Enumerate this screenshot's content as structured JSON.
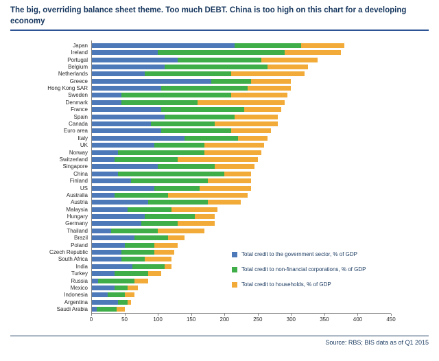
{
  "title": "The big, overriding balance sheet theme. Too much DEBT. China is too high on this chart for a developing economy",
  "source": "Source:  RBS; BIS data as of Q1 2015",
  "colors": {
    "government": "#4d79b8",
    "corporations": "#3fae49",
    "households": "#f2ab38",
    "title_navy": "#17375e",
    "rule_blue": "#2e5496"
  },
  "chart_data": {
    "type": "bar",
    "orientation": "horizontal",
    "stacked": true,
    "title": "",
    "xlabel": "",
    "ylabel": "",
    "xlim": [
      0,
      450
    ],
    "xticks": [
      0,
      50,
      100,
      150,
      200,
      250,
      300,
      350,
      400,
      450
    ],
    "grid": false,
    "legend_position": "inside-lower-right",
    "categories": [
      "Japan",
      "Ireland",
      "Portugal",
      "Belgium",
      "Netherlands",
      "Greece",
      "Hong Kong SAR",
      "Sweden",
      "Denmark",
      "France",
      "Spain",
      "Canada",
      "Euro area",
      "Italy",
      "UK",
      "Norway",
      "Switzerland",
      "Singapore",
      "China",
      "Finland",
      "US",
      "Australia",
      "Austria",
      "Malaysia",
      "Hungary",
      "Germany",
      "Thailand",
      "Brazil",
      "Poland",
      "Czech Republic",
      "South Africa",
      "India",
      "Turkey",
      "Russia",
      "Mexico",
      "Indonesia",
      "Argentina",
      "Saudi Arabia"
    ],
    "series": [
      {
        "key": "government",
        "name": "Total credit to the government sector, % of GDP",
        "color": "#4d79b8",
        "values": [
          215,
          100,
          130,
          110,
          80,
          180,
          105,
          45,
          45,
          105,
          110,
          90,
          105,
          140,
          95,
          40,
          35,
          100,
          40,
          60,
          95,
          35,
          85,
          55,
          80,
          75,
          30,
          65,
          50,
          45,
          45,
          62,
          35,
          10,
          35,
          25,
          40,
          8
        ]
      },
      {
        "key": "corporations",
        "name": "Total credit to non-financial corporations, % of GDP",
        "color": "#3fae49",
        "values": [
          100,
          190,
          125,
          155,
          130,
          60,
          130,
          165,
          115,
          125,
          105,
          95,
          105,
          80,
          75,
          130,
          95,
          85,
          160,
          115,
          68,
          80,
          90,
          65,
          75,
          55,
          70,
          50,
          45,
          50,
          35,
          48,
          50,
          55,
          20,
          25,
          15,
          30
        ]
      },
      {
        "key": "households",
        "name": "Total credit to households, % of GDP",
        "color": "#f2ab38",
        "values": [
          65,
          85,
          85,
          60,
          110,
          60,
          65,
          85,
          130,
          55,
          65,
          95,
          60,
          45,
          90,
          85,
          120,
          60,
          40,
          65,
          77,
          120,
          50,
          70,
          30,
          55,
          70,
          25,
          35,
          30,
          40,
          10,
          20,
          20,
          15,
          15,
          5,
          12
        ]
      }
    ]
  }
}
